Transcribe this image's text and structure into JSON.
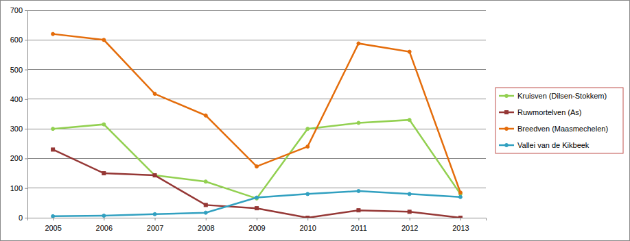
{
  "chart_data": {
    "type": "line",
    "categories": [
      "2005",
      "2006",
      "2007",
      "2008",
      "2009",
      "2010",
      "2011",
      "2012",
      "2013"
    ],
    "series": [
      {
        "name": "Kruisven (Dilsen-Stokkem)",
        "color": "#92d050",
        "marker": "circle",
        "values": [
          300,
          315,
          143,
          122,
          65,
          300,
          320,
          330,
          80
        ]
      },
      {
        "name": "Ruwmortelven (As)",
        "color": "#953735",
        "marker": "square",
        "values": [
          230,
          150,
          143,
          43,
          32,
          0,
          25,
          20,
          0
        ]
      },
      {
        "name": "Breedven (Maasmechelen)",
        "color": "#e46c0a",
        "marker": "circle",
        "values": [
          620,
          600,
          418,
          345,
          173,
          240,
          588,
          560,
          85
        ]
      },
      {
        "name": "Vallei van de Kikbeek",
        "color": "#31a0c0",
        "marker": "circle",
        "values": [
          5,
          7,
          12,
          17,
          68,
          80,
          90,
          80,
          70
        ]
      }
    ],
    "ylim": [
      0,
      700
    ],
    "yticks": [
      0,
      100,
      200,
      300,
      400,
      500,
      600,
      700
    ],
    "grid": true,
    "legend": "right"
  }
}
